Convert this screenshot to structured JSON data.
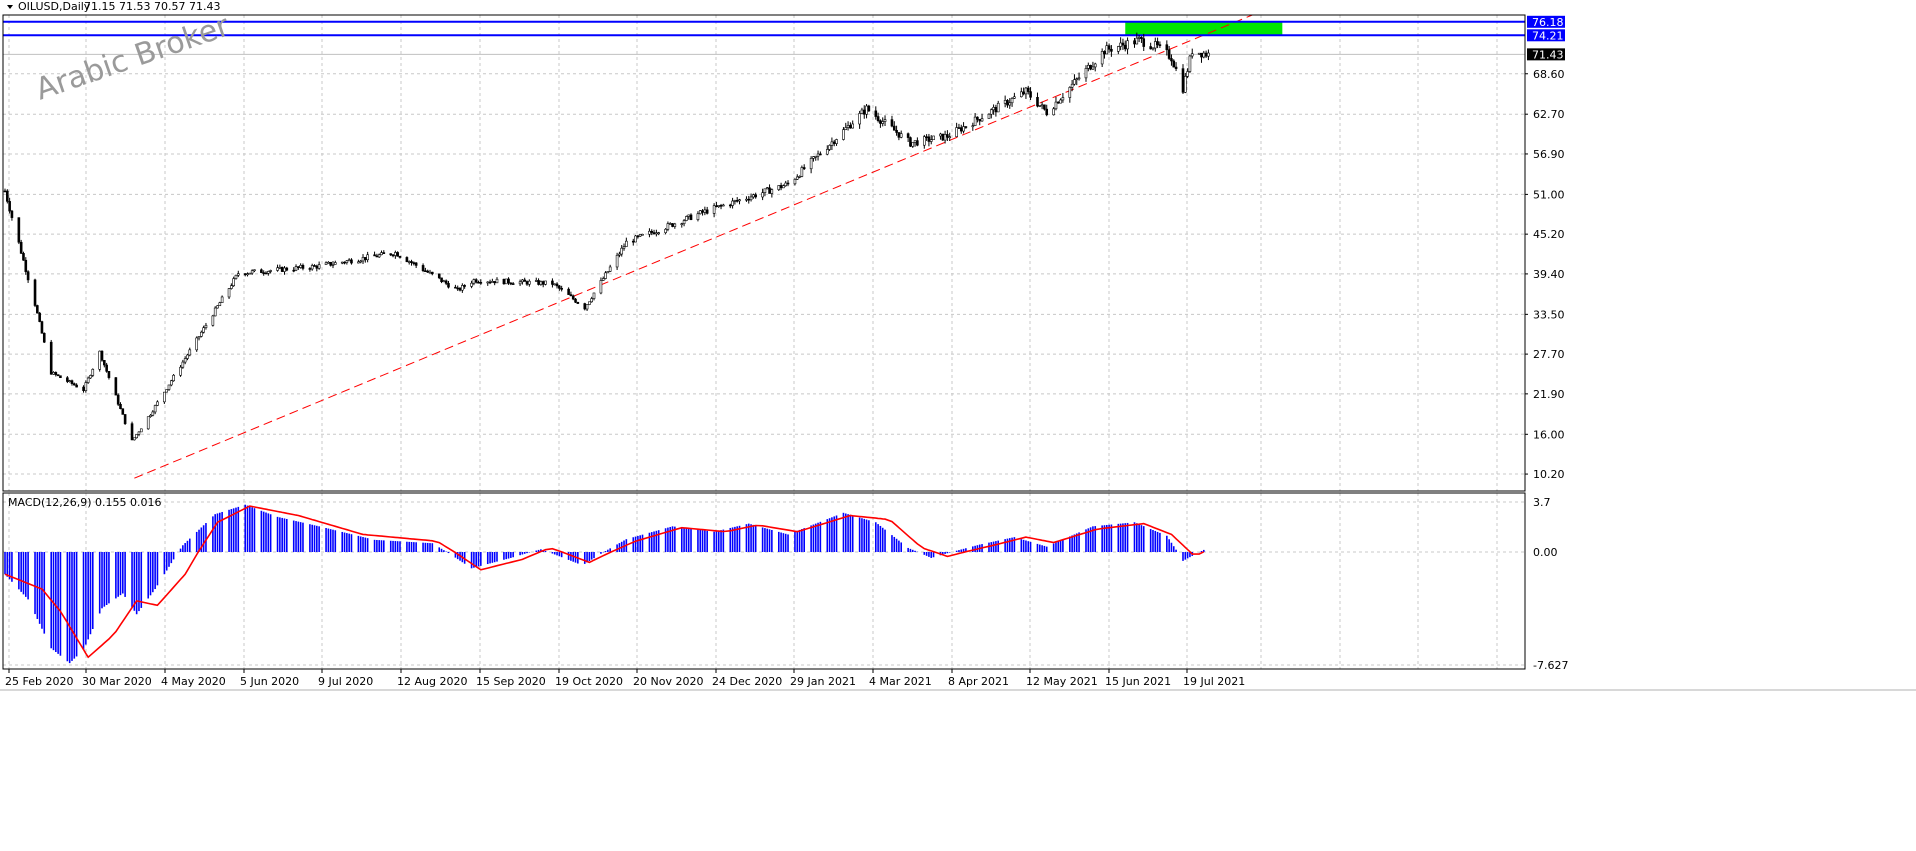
{
  "chart_data": [
    {
      "type": "candlestick",
      "title": "OILUSD,Daily",
      "ohlc_readout": "71.15 71.53 70.57 71.43",
      "watermark": "Arabic Broker",
      "ylim": [
        7.3,
        79.1
      ],
      "y_ticks": [
        "76.18",
        "74.21",
        "71.43",
        "68.60",
        "62.70",
        "56.90",
        "51.00",
        "45.20",
        "39.40",
        "33.50",
        "27.70",
        "21.90",
        "16.00",
        "10.20"
      ],
      "x_ticks": [
        "25 Feb 2020",
        "30 Mar 2020",
        "4 May 2020",
        "5 Jun 2020",
        "9 Jul 2020",
        "12 Aug 2020",
        "15 Sep 2020",
        "19 Oct 2020",
        "20 Nov 2020",
        "24 Dec 2020",
        "29 Jan 2021",
        "4 Mar 2021",
        "8 Apr 2021",
        "12 May 2021",
        "15 Jun 2021",
        "19 Jul 2021"
      ],
      "grid": true,
      "key_points": [
        {
          "date": "2020-02-25",
          "close": 51.5
        },
        {
          "date": "2020-03-09",
          "close": 35.0
        },
        {
          "date": "2020-03-16",
          "close": 25.0
        },
        {
          "date": "2020-03-30",
          "close": 22.5
        },
        {
          "date": "2020-04-06",
          "close": 28.0
        },
        {
          "date": "2020-04-20",
          "close": 15.0
        },
        {
          "date": "2020-04-28",
          "close": 19.0
        },
        {
          "date": "2020-05-11",
          "close": 26.0
        },
        {
          "date": "2020-06-05",
          "close": 39.5
        },
        {
          "date": "2020-07-09",
          "close": 40.5
        },
        {
          "date": "2020-08-12",
          "close": 42.5
        },
        {
          "date": "2020-09-08",
          "close": 37.0
        },
        {
          "date": "2020-09-15",
          "close": 38.5
        },
        {
          "date": "2020-10-19",
          "close": 38.0
        },
        {
          "date": "2020-11-02",
          "close": 34.5
        },
        {
          "date": "2020-11-20",
          "close": 44.0
        },
        {
          "date": "2020-12-24",
          "close": 48.5
        },
        {
          "date": "2021-01-29",
          "close": 52.5
        },
        {
          "date": "2021-03-04",
          "close": 63.5
        },
        {
          "date": "2021-03-23",
          "close": 58.5
        },
        {
          "date": "2021-04-08",
          "close": 59.5
        },
        {
          "date": "2021-05-12",
          "close": 66.0
        },
        {
          "date": "2021-05-21",
          "close": 63.0
        },
        {
          "date": "2021-06-15",
          "close": 72.0
        },
        {
          "date": "2021-06-30",
          "close": 73.5
        },
        {
          "date": "2021-07-08",
          "close": 72.5
        },
        {
          "date": "2021-07-14",
          "close": 71.0
        },
        {
          "date": "2021-07-19",
          "close": 66.5
        },
        {
          "date": "2021-07-23",
          "close": 72.0
        },
        {
          "date": "2021-07-30",
          "close": 71.43
        }
      ],
      "levels": [
        {
          "name": "resistance-upper",
          "value": 76.18,
          "color": "#0000ff"
        },
        {
          "name": "resistance-lower",
          "value": 74.21,
          "color": "#0000ff"
        },
        {
          "name": "current-price",
          "value": 71.43,
          "color": "#c0c0c0"
        }
      ],
      "zone": {
        "from_date": "2021-06-24",
        "to_date": "2021-08-31",
        "y_from": 74.21,
        "y_to": 76.18,
        "color": "#00e600"
      },
      "trendline": {
        "from": {
          "date": "2020-04-21",
          "value": 9.6
        },
        "to": {
          "date": "2021-09-18",
          "value": 81.5
        },
        "color": "#ff0000",
        "style": "dashed"
      }
    },
    {
      "type": "macd",
      "label": "MACD(12,26,9) 0.155 0.016",
      "ylim": [
        -7.627,
        3.7
      ],
      "y_ticks": [
        "3.7",
        "0.00",
        "-7.627"
      ],
      "histogram_color": "#0000ff",
      "signal_color": "#ff0000",
      "macd_points": [
        {
          "date": "2020-02-25",
          "value": -1.5
        },
        {
          "date": "2020-03-06",
          "value": -3.2
        },
        {
          "date": "2020-03-16",
          "value": -6.5
        },
        {
          "date": "2020-03-24",
          "value": -7.5
        },
        {
          "date": "2020-03-30",
          "value": -6.6
        },
        {
          "date": "2020-04-07",
          "value": -3.8
        },
        {
          "date": "2020-04-16",
          "value": -2.8
        },
        {
          "date": "2020-04-22",
          "value": -4.2
        },
        {
          "date": "2020-04-30",
          "value": -2.5
        },
        {
          "date": "2020-05-12",
          "value": 0.5
        },
        {
          "date": "2020-05-26",
          "value": 2.8
        },
        {
          "date": "2020-06-08",
          "value": 3.5
        },
        {
          "date": "2020-06-22",
          "value": 2.6
        },
        {
          "date": "2020-07-10",
          "value": 1.9
        },
        {
          "date": "2020-08-03",
          "value": 0.9
        },
        {
          "date": "2020-08-28",
          "value": 0.65
        },
        {
          "date": "2020-09-14",
          "value": -1.1
        },
        {
          "date": "2020-10-01",
          "value": -0.4
        },
        {
          "date": "2020-10-14",
          "value": 0.2
        },
        {
          "date": "2020-11-01",
          "value": -0.9
        },
        {
          "date": "2020-11-20",
          "value": 0.95
        },
        {
          "date": "2020-12-10",
          "value": 1.9
        },
        {
          "date": "2020-12-28",
          "value": 1.5
        },
        {
          "date": "2021-01-12",
          "value": 2.1
        },
        {
          "date": "2021-01-29",
          "value": 1.3
        },
        {
          "date": "2021-02-22",
          "value": 2.9
        },
        {
          "date": "2021-03-08",
          "value": 2.2
        },
        {
          "date": "2021-03-22",
          "value": 0.3
        },
        {
          "date": "2021-04-01",
          "value": -0.4
        },
        {
          "date": "2021-04-22",
          "value": 0.55
        },
        {
          "date": "2021-05-07",
          "value": 1.1
        },
        {
          "date": "2021-05-21",
          "value": 0.4
        },
        {
          "date": "2021-06-10",
          "value": 1.9
        },
        {
          "date": "2021-06-28",
          "value": 2.2
        },
        {
          "date": "2021-07-12",
          "value": 1.2
        },
        {
          "date": "2021-07-19",
          "value": -0.6
        },
        {
          "date": "2021-07-28",
          "value": 0.155
        }
      ],
      "signal_points": [
        {
          "date": "2020-02-25",
          "value": -1.5
        },
        {
          "date": "2020-03-12",
          "value": -2.5
        },
        {
          "date": "2020-03-20",
          "value": -4.0
        },
        {
          "date": "2020-04-01",
          "value": -7.1
        },
        {
          "date": "2020-04-12",
          "value": -5.6
        },
        {
          "date": "2020-04-22",
          "value": -3.3
        },
        {
          "date": "2020-05-01",
          "value": -3.6
        },
        {
          "date": "2020-05-13",
          "value": -1.5
        },
        {
          "date": "2020-05-27",
          "value": 2.2
        },
        {
          "date": "2020-06-10",
          "value": 3.4
        },
        {
          "date": "2020-07-01",
          "value": 2.7
        },
        {
          "date": "2020-07-29",
          "value": 1.3
        },
        {
          "date": "2020-08-30",
          "value": 0.8
        },
        {
          "date": "2020-09-18",
          "value": -1.2
        },
        {
          "date": "2020-10-06",
          "value": -0.5
        },
        {
          "date": "2020-10-18",
          "value": 0.3
        },
        {
          "date": "2020-11-04",
          "value": -0.7
        },
        {
          "date": "2020-11-24",
          "value": 0.8
        },
        {
          "date": "2020-12-14",
          "value": 1.8
        },
        {
          "date": "2021-01-02",
          "value": 1.5
        },
        {
          "date": "2021-01-16",
          "value": 2.0
        },
        {
          "date": "2021-02-02",
          "value": 1.5
        },
        {
          "date": "2021-02-25",
          "value": 2.7
        },
        {
          "date": "2021-03-14",
          "value": 2.4
        },
        {
          "date": "2021-03-28",
          "value": 0.3
        },
        {
          "date": "2021-04-08",
          "value": -0.3
        },
        {
          "date": "2021-04-28",
          "value": 0.5
        },
        {
          "date": "2021-05-12",
          "value": 1.1
        },
        {
          "date": "2021-05-24",
          "value": 0.7
        },
        {
          "date": "2021-06-12",
          "value": 1.7
        },
        {
          "date": "2021-07-02",
          "value": 2.1
        },
        {
          "date": "2021-07-14",
          "value": 1.3
        },
        {
          "date": "2021-07-24",
          "value": -0.3
        },
        {
          "date": "2021-07-28",
          "value": 0.016
        }
      ]
    }
  ]
}
